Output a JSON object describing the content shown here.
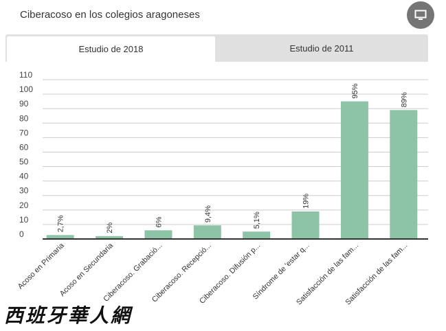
{
  "header": {
    "title": "Ciberacoso en los colegios aragoneses",
    "corner_icon": "monitor-icon"
  },
  "tabs": [
    {
      "label": "Estudio de 2018",
      "active": true
    },
    {
      "label": "Estudio de 2011",
      "active": false
    }
  ],
  "watermark": "西班牙華人網",
  "colors": {
    "bar": "#8dc3a7",
    "tab_bg": "#e0e0e0",
    "button": "#757575"
  },
  "chart_data": {
    "type": "bar",
    "categories": [
      "Acoso en Primaria",
      "Acoso en Secundaria",
      "Ciberacoso. Grabació...",
      "Ciberacoso. Recepció...",
      "Ciberacoso. Difusión p...",
      "Síndrome de 'estar q...",
      "Satisfacción de las fam...",
      "Satisfacción de las fam..."
    ],
    "values": [
      2.7,
      2,
      6,
      9.4,
      5.1,
      19,
      95,
      89
    ],
    "data_labels": [
      "2,7%",
      "2%",
      "6%",
      "9,4%",
      "5,1%",
      "19%",
      "95%",
      "89%"
    ],
    "yticks": [
      0,
      10,
      20,
      30,
      40,
      50,
      60,
      70,
      80,
      90,
      100,
      110
    ],
    "ylim": [
      0,
      110
    ],
    "grid": true
  }
}
